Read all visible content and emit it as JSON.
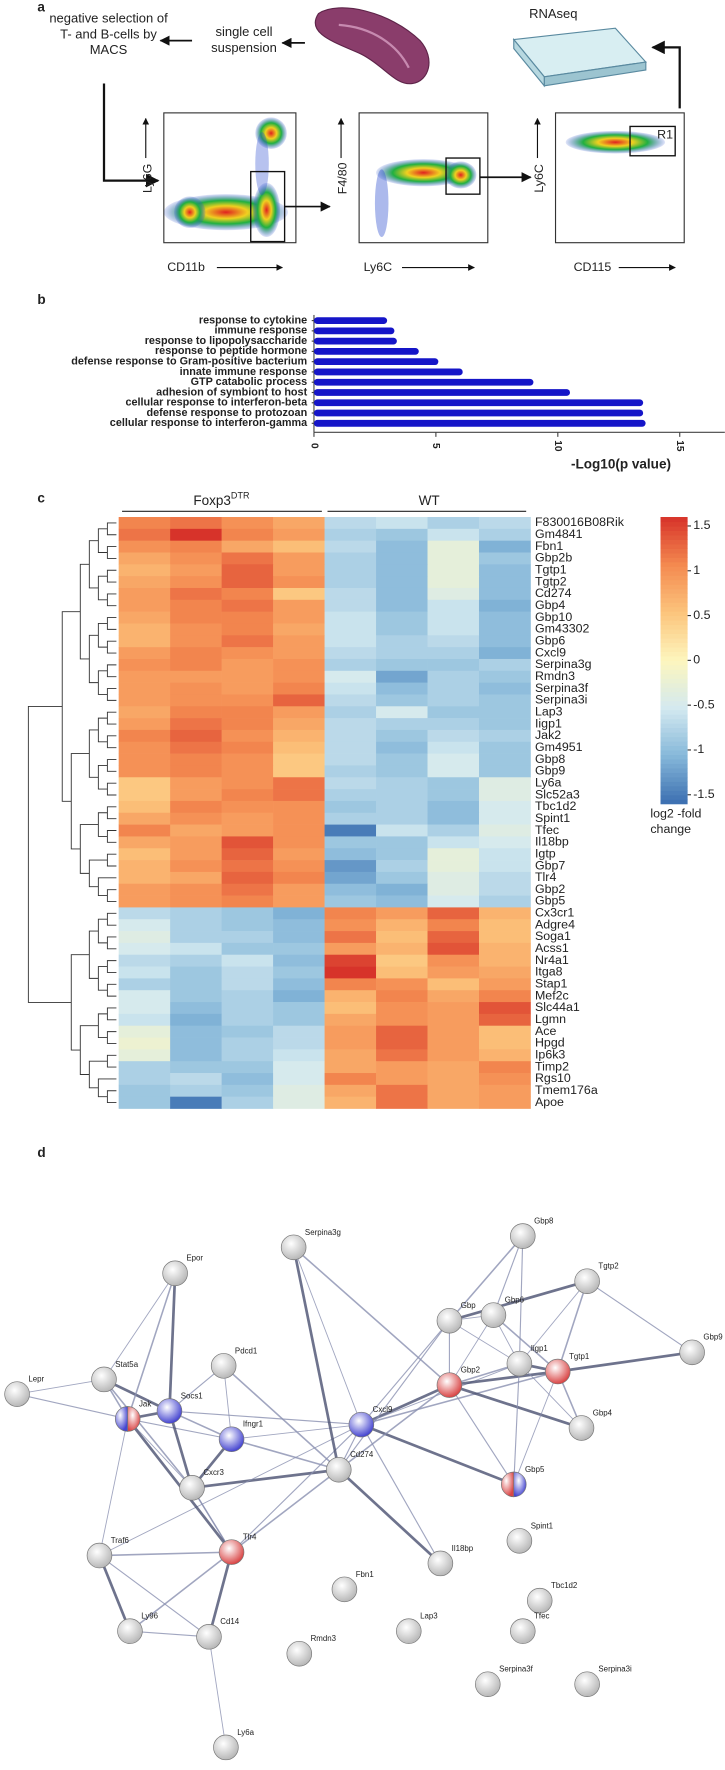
{
  "panel_labels": [
    "a",
    "b",
    "c",
    "d"
  ],
  "panel_a": {
    "steps": [
      "negative selection of T- and B-cells by MACS",
      "single cell suspension",
      "RNAseq"
    ],
    "plots": [
      {
        "y_label": "Ly6G",
        "x_label": "CD11b"
      },
      {
        "y_label": "F4/80",
        "x_label": "Ly6C"
      },
      {
        "y_label": "Ly6C",
        "x_label": "CD115",
        "gate": "R1"
      }
    ]
  },
  "chart_data": [
    {
      "type": "bar",
      "orientation": "horizontal",
      "color": "#1515c8",
      "categories": [
        "response to cytokine",
        "immune response",
        "response to lipopolysaccharide",
        "response to peptide hormone",
        "defense response to Gram-positive bacterium",
        "innate immune response",
        "GTP catabolic process",
        "adhesion of symbiont to host",
        "cellular response to interferon-beta",
        "defense response to protozoan",
        "cellular response to interferon-gamma"
      ],
      "values": [
        3.0,
        3.3,
        3.4,
        4.3,
        5.1,
        6.1,
        9.0,
        10.5,
        13.5,
        13.5,
        13.6
      ],
      "xlim": [
        0,
        16.85
      ],
      "xticks": [
        0,
        5,
        10,
        15
      ],
      "xlabel": "-Log10(p value)"
    },
    {
      "type": "heatmap",
      "groups": [
        {
          "name": "Foxp3",
          "superscript": "DTR"
        },
        {
          "name": "WT"
        }
      ],
      "rows": [
        "F830016B08Rik",
        "Gm4841",
        "Fbn1",
        "Gbp2b",
        "Tgtp1",
        "Tgtp2",
        "Cd274",
        "Gbp4",
        "Gbp10",
        "Gm43302",
        "Gbp6",
        "Cxcl9",
        "Serpina3g",
        "Rmdn3",
        "Serpina3f",
        "Serpina3i",
        "Lap3",
        "Iigp1",
        "Jak2",
        "Gm4951",
        "Gbp8",
        "Gbp9",
        "Ly6a",
        "Slc52a3",
        "Tbc1d2",
        "Spint1",
        "Tfec",
        "Il18bp",
        "Igtp",
        "Gbp7",
        "Tlr4",
        "Gbp2",
        "Gbp5",
        "Cx3cr1",
        "Adgre4",
        "Soga1",
        "Acss1",
        "Nr4a1",
        "Itga8",
        "Stap1",
        "Mef2c",
        "Slc44a1",
        "Lgmn",
        "Ace",
        "Hpgd",
        "Ip6k3",
        "Timp2",
        "Rgs10",
        "Tmem176a",
        "Apoe"
      ],
      "values": [
        [
          1.1,
          1.2,
          1.0,
          0.8,
          -0.7,
          -0.6,
          -0.8,
          -0.7
        ],
        [
          1.2,
          1.6,
          1.1,
          0.9,
          -0.8,
          -0.9,
          -0.6,
          -0.8
        ],
        [
          1.0,
          1.1,
          0.8,
          0.6,
          -0.7,
          -1.0,
          -0.3,
          -1.1
        ],
        [
          0.8,
          1.0,
          1.2,
          0.9,
          -0.8,
          -1.0,
          -0.3,
          -0.9
        ],
        [
          0.7,
          0.9,
          1.3,
          0.9,
          -0.8,
          -1.0,
          -0.3,
          -1.0
        ],
        [
          0.8,
          1.0,
          1.3,
          1.0,
          -0.8,
          -1.0,
          -0.3,
          -1.0
        ],
        [
          0.9,
          1.2,
          1.1,
          0.5,
          -0.7,
          -1.0,
          -0.4,
          -1.0
        ],
        [
          0.9,
          1.1,
          1.2,
          0.9,
          -0.7,
          -1.0,
          -0.6,
          -1.1
        ],
        [
          0.8,
          1.1,
          1.1,
          0.9,
          -0.6,
          -0.9,
          -0.6,
          -1.0
        ],
        [
          0.7,
          1.0,
          1.1,
          0.8,
          -0.6,
          -0.9,
          -0.6,
          -1.0
        ],
        [
          0.7,
          1.0,
          1.2,
          0.9,
          -0.6,
          -0.8,
          -0.7,
          -1.0
        ],
        [
          0.9,
          1.1,
          1.0,
          0.9,
          -0.7,
          -0.8,
          -0.8,
          -1.1
        ],
        [
          1.0,
          1.1,
          0.9,
          1.0,
          -0.8,
          -0.9,
          -0.9,
          -0.8
        ],
        [
          0.9,
          0.9,
          0.9,
          1.0,
          -0.5,
          -1.2,
          -0.8,
          -0.9
        ],
        [
          0.9,
          1.0,
          0.9,
          1.1,
          -0.6,
          -1.0,
          -0.8,
          -1.0
        ],
        [
          0.9,
          1.0,
          1.0,
          1.3,
          -0.7,
          -0.9,
          -0.8,
          -0.9
        ],
        [
          0.8,
          1.1,
          1.1,
          0.9,
          -0.8,
          -0.5,
          -0.9,
          -0.9
        ],
        [
          0.9,
          1.2,
          1.1,
          0.8,
          -0.7,
          -0.8,
          -0.8,
          -0.9
        ],
        [
          1.1,
          1.3,
          1.0,
          0.7,
          -0.7,
          -0.9,
          -0.7,
          -0.8
        ],
        [
          1.0,
          1.2,
          1.1,
          0.6,
          -0.7,
          -1.0,
          -0.6,
          -0.9
        ],
        [
          1.0,
          1.1,
          1.0,
          0.5,
          -0.7,
          -0.9,
          -0.5,
          -0.9
        ],
        [
          1.0,
          1.1,
          1.0,
          0.5,
          -0.8,
          -0.9,
          -0.5,
          -0.9
        ],
        [
          0.5,
          0.9,
          1.0,
          1.2,
          -0.7,
          -0.8,
          -0.9,
          -0.4
        ],
        [
          0.5,
          0.9,
          1.1,
          1.2,
          -0.8,
          -0.8,
          -0.9,
          -0.4
        ],
        [
          0.6,
          1.1,
          1.0,
          1.0,
          -0.9,
          -0.8,
          -1.0,
          -0.5
        ],
        [
          0.8,
          1.0,
          0.9,
          1.0,
          -0.8,
          -0.8,
          -1.0,
          -0.5
        ],
        [
          1.1,
          0.8,
          0.9,
          1.0,
          -1.5,
          -0.6,
          -0.8,
          -0.4
        ],
        [
          0.8,
          0.9,
          1.4,
          1.0,
          -0.9,
          -0.9,
          -0.6,
          -0.5
        ],
        [
          0.6,
          0.9,
          1.3,
          0.9,
          -1.0,
          -0.9,
          -0.3,
          -0.6
        ],
        [
          0.7,
          1.0,
          1.2,
          1.0,
          -1.3,
          -0.8,
          -0.3,
          -0.6
        ],
        [
          0.7,
          0.8,
          1.3,
          1.1,
          -1.2,
          -0.9,
          -0.4,
          -0.7
        ],
        [
          0.9,
          1.0,
          1.2,
          0.9,
          -1.0,
          -1.1,
          -0.4,
          -0.7
        ],
        [
          0.9,
          1.0,
          1.1,
          0.9,
          -0.9,
          -1.0,
          -0.5,
          -0.8
        ],
        [
          -0.7,
          -0.8,
          -0.9,
          -1.1,
          1.1,
          0.9,
          1.3,
          0.7
        ],
        [
          -0.5,
          -0.8,
          -0.9,
          -1.0,
          1.0,
          0.7,
          1.1,
          0.6
        ],
        [
          -0.4,
          -0.8,
          -0.8,
          -1.0,
          1.2,
          0.6,
          1.3,
          0.6
        ],
        [
          -0.5,
          -0.6,
          -0.9,
          -0.9,
          0.9,
          0.7,
          1.4,
          0.7
        ],
        [
          -0.7,
          -0.8,
          -0.6,
          -1.0,
          1.5,
          0.5,
          1.0,
          0.7
        ],
        [
          -0.6,
          -0.9,
          -0.7,
          -0.9,
          1.6,
          0.6,
          0.9,
          0.8
        ],
        [
          -0.8,
          -0.9,
          -0.7,
          -1.0,
          1.1,
          1.0,
          0.6,
          0.9
        ],
        [
          -0.5,
          -0.9,
          -0.8,
          -1.1,
          0.7,
          1.1,
          0.8,
          1.1
        ],
        [
          -0.5,
          -1.0,
          -0.8,
          -0.9,
          0.6,
          1.0,
          0.9,
          1.4
        ],
        [
          -0.6,
          -1.1,
          -0.8,
          -0.9,
          0.8,
          1.0,
          0.9,
          1.3
        ],
        [
          -0.3,
          -1.0,
          -0.9,
          -0.7,
          0.9,
          1.3,
          0.9,
          0.6
        ],
        [
          -0.2,
          -1.0,
          -0.8,
          -0.7,
          0.9,
          1.3,
          0.9,
          0.6
        ],
        [
          -0.3,
          -1.0,
          -0.8,
          -0.6,
          0.8,
          1.2,
          0.9,
          0.7
        ],
        [
          -0.8,
          -0.9,
          -0.9,
          -0.5,
          0.8,
          0.9,
          0.8,
          1.1
        ],
        [
          -0.8,
          -0.7,
          -1.0,
          -0.5,
          1.1,
          0.9,
          0.8,
          1.0
        ],
        [
          -0.9,
          -0.8,
          -0.9,
          -0.4,
          0.8,
          1.2,
          0.8,
          0.9
        ],
        [
          -0.9,
          -1.5,
          -0.8,
          -0.4,
          0.7,
          1.2,
          0.8,
          0.9
        ]
      ],
      "colorscale": [
        "#3b6eb0",
        "#85b7d9",
        "#d3e9f0",
        "#fdf6be",
        "#fcc57d",
        "#f48a50",
        "#d7332a"
      ],
      "clim": [
        -1.6,
        1.6
      ],
      "cticks": [
        1.5,
        1,
        0.5,
        0,
        -0.5,
        -1,
        -1.5
      ],
      "colorbar_label": "log2 -fold change"
    }
  ],
  "network": {
    "nodes": [
      {
        "label": "Serpina3g",
        "colors": [
          "#b8b8b8"
        ]
      },
      {
        "label": "Epor",
        "colors": [
          "#b8b8b8"
        ]
      },
      {
        "label": "Gbp8",
        "colors": [
          "#b8b8b8"
        ]
      },
      {
        "label": "Tgtp2",
        "colors": [
          "#b8b8b8"
        ]
      },
      {
        "label": "Gbp6",
        "colors": [
          "#b8b8b8"
        ]
      },
      {
        "label": "Gbp",
        "colors": [
          "#b8b8b8"
        ]
      },
      {
        "label": "Gbp9",
        "colors": [
          "#b8b8b8"
        ]
      },
      {
        "label": "Lepr",
        "colors": [
          "#b8b8b8"
        ]
      },
      {
        "label": "Stat5a",
        "colors": [
          "#b8b8b8"
        ]
      },
      {
        "label": "Pdcd1",
        "colors": [
          "#b8b8b8"
        ]
      },
      {
        "label": "Jak",
        "colors": [
          "#4545d0",
          "#d94545"
        ]
      },
      {
        "label": "Socs1",
        "colors": [
          "#4545d0"
        ]
      },
      {
        "label": "Gbp2",
        "colors": [
          "#d94545"
        ]
      },
      {
        "label": "Iigp1",
        "colors": [
          "#b8b8b8"
        ]
      },
      {
        "label": "Tgtp1",
        "colors": [
          "#d94545"
        ]
      },
      {
        "label": "Ifngr1",
        "colors": [
          "#4545d0"
        ]
      },
      {
        "label": "Cxcl9",
        "colors": [
          "#4545d0"
        ]
      },
      {
        "label": "Cd274",
        "colors": [
          "#b8b8b8"
        ]
      },
      {
        "label": "Gbp4",
        "colors": [
          "#b8b8b8"
        ]
      },
      {
        "label": "Cxcr3",
        "colors": [
          "#b8b8b8"
        ]
      },
      {
        "label": "Gbp5",
        "colors": [
          "#d94545",
          "#4545d0"
        ]
      },
      {
        "label": "Traf6",
        "colors": [
          "#b8b8b8"
        ]
      },
      {
        "label": "Tlr4",
        "colors": [
          "#d94545"
        ]
      },
      {
        "label": "Spint1",
        "colors": [
          "#b8b8b8"
        ]
      },
      {
        "label": "Il18bp",
        "colors": [
          "#b8b8b8"
        ]
      },
      {
        "label": "Fbn1",
        "colors": [
          "#b8b8b8"
        ]
      },
      {
        "label": "Tbc1d2",
        "colors": [
          "#b8b8b8"
        ]
      },
      {
        "label": "Ly96",
        "colors": [
          "#b8b8b8"
        ]
      },
      {
        "label": "Cd14",
        "colors": [
          "#b8b8b8"
        ]
      },
      {
        "label": "Rmdn3",
        "colors": [
          "#b8b8b8"
        ]
      },
      {
        "label": "Lap3",
        "colors": [
          "#b8b8b8"
        ]
      },
      {
        "label": "Tfec",
        "colors": [
          "#b8b8b8"
        ]
      },
      {
        "label": "Serpina3f",
        "colors": [
          "#b8b8b8"
        ]
      },
      {
        "label": "Serpina3i",
        "colors": [
          "#b8b8b8"
        ]
      },
      {
        "label": "Ly6a",
        "colors": [
          "#b8b8b8"
        ]
      }
    ]
  }
}
